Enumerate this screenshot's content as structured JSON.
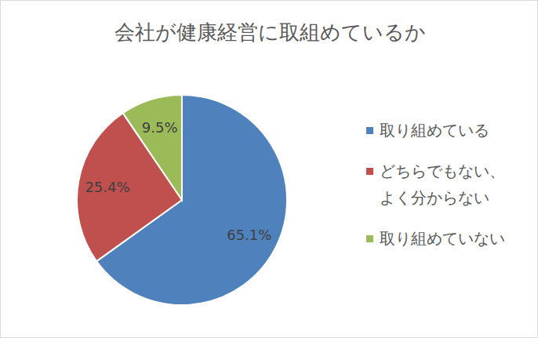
{
  "chart_data": {
    "type": "pie",
    "title": "会社が健康経営に取組めているか",
    "categories": [
      "取り組めている",
      "どちらでもない、よく分からない",
      "取り組めていない"
    ],
    "values": [
      65.1,
      25.4,
      9.5
    ],
    "value_labels": [
      "65.1%",
      "25.4%",
      "9.5%"
    ],
    "colors": [
      "#4f81bd",
      "#c0504d",
      "#9bbb59"
    ],
    "data_labels": true,
    "legend": "right"
  }
}
